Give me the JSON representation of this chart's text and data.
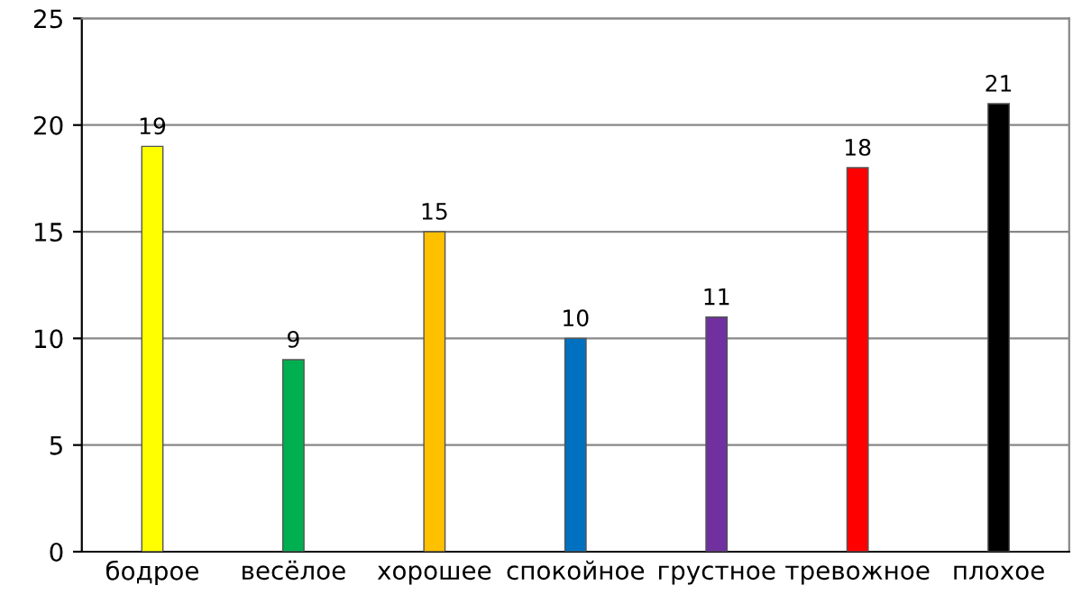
{
  "chart_data": {
    "type": "bar",
    "categories": [
      "бодрое",
      "весёлое",
      "хорошее",
      "спокойное",
      "грустное",
      "тревожное",
      "плохое"
    ],
    "values": [
      19,
      9,
      15,
      10,
      11,
      18,
      21
    ],
    "colors": [
      "#ffff00",
      "#00b050",
      "#ffc000",
      "#0070c0",
      "#7030a0",
      "#ff0000",
      "#000000"
    ],
    "ylim": [
      0,
      25
    ],
    "yticks": [
      0,
      5,
      10,
      15,
      20,
      25
    ],
    "grid": "y",
    "data_labels": true
  }
}
